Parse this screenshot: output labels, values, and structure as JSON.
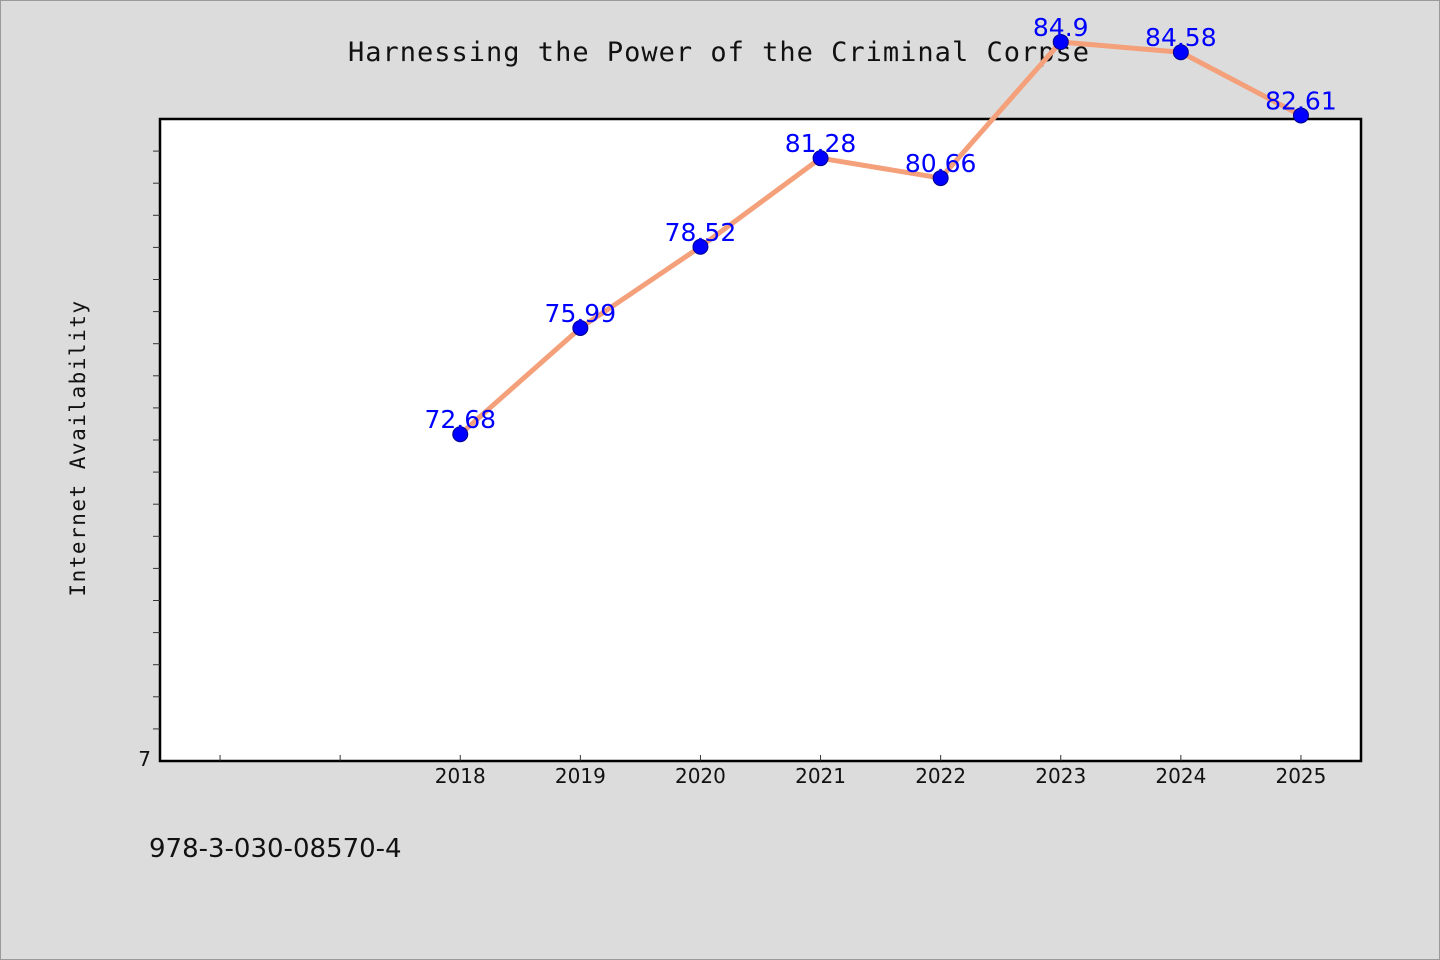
{
  "chart_data": {
    "type": "line",
    "title": "Harnessing the Power of the Criminal Corpse",
    "xlabel": "",
    "ylabel": "Internet Availability",
    "categories": [
      "2018",
      "2019",
      "2020",
      "2021",
      "2022",
      "2023",
      "2024",
      "2025"
    ],
    "series": [
      {
        "values": [
          72.68,
          75.99,
          78.52,
          81.28,
          80.66,
          84.9,
          84.58,
          82.61
        ],
        "line_color": "#f4a07a",
        "marker_color": "#0000ff"
      }
    ],
    "data_labels": [
      "72.68",
      "75.99",
      "78.52",
      "81.28",
      "80.66",
      "84.9",
      "84.58",
      "82.61"
    ],
    "y_tick_labels": [
      "7"
    ],
    "ylim": [
      62.5,
      82.5
    ],
    "xlim": [
      -2.5,
      7.5
    ],
    "grid": false,
    "legend": "none"
  },
  "footer": {
    "isbn": "978-3-030-08570-4"
  }
}
